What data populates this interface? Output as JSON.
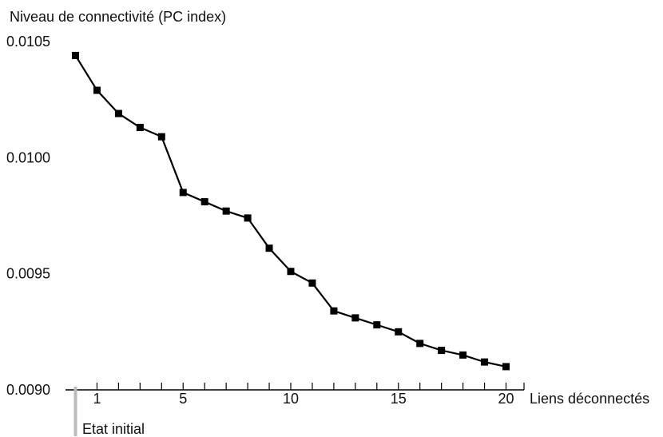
{
  "chart_data": {
    "type": "line",
    "title": "",
    "ylabel": "Niveau de connectivité (PC index)",
    "xlabel": "Liens déconnectés",
    "initial_label": "Etat initial",
    "x": [
      0,
      1,
      2,
      3,
      4,
      5,
      6,
      7,
      8,
      9,
      10,
      11,
      12,
      13,
      14,
      15,
      16,
      17,
      18,
      19,
      20
    ],
    "series": [
      {
        "values": [
          0.01044,
          0.01029,
          0.01019,
          0.01013,
          0.01009,
          0.00985,
          0.00981,
          0.00977,
          0.00974,
          0.00961,
          0.00951,
          0.00946,
          0.00934,
          0.00931,
          0.00928,
          0.00925,
          0.0092,
          0.00917,
          0.00915,
          0.00912,
          0.0091
        ]
      }
    ],
    "xticks": [
      "1",
      "5",
      "10",
      "15",
      "20"
    ],
    "xtick_values": [
      1,
      5,
      10,
      15,
      20
    ],
    "yticks": [
      "0.0090",
      "0.0095",
      "0.0100",
      "0.0105"
    ],
    "ytick_values": [
      0.009,
      0.0095,
      0.01,
      0.0105
    ],
    "xlim": [
      0,
      20
    ],
    "ylim": [
      0.009,
      0.0105
    ],
    "grid": false,
    "colors": {
      "line": "#000000",
      "initial_marker": "#bbbbbb",
      "axis": "#000000"
    }
  }
}
